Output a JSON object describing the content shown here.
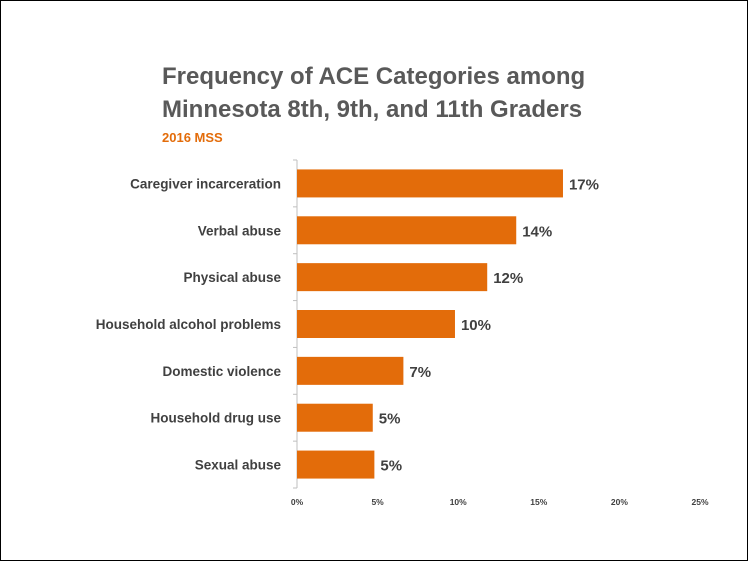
{
  "chart_data": {
    "type": "bar",
    "orientation": "horizontal",
    "title": "Frequency of ACE Categories among Minnesota 8th, 9th, and 11th Graders",
    "subtitle": "2016 MSS",
    "categories": [
      "Caregiver incarceration",
      "Verbal abuse",
      "Physical abuse",
      "Household alcohol problems",
      "Domestic violence",
      "Household drug use",
      "Sexual abuse"
    ],
    "values": [
      16.5,
      13.6,
      11.8,
      9.8,
      6.6,
      4.7,
      4.8
    ],
    "value_labels": [
      "17%",
      "14%",
      "12%",
      "10%",
      "7%",
      "5%",
      "5%"
    ],
    "xlim": [
      0,
      25
    ],
    "xticks": [
      0,
      5,
      10,
      15,
      20,
      25
    ],
    "xtick_labels": [
      "0%",
      "5%",
      "10%",
      "15%",
      "20%",
      "25%"
    ],
    "grid": false,
    "legend": "none",
    "bar_color": "#E36C0A"
  }
}
